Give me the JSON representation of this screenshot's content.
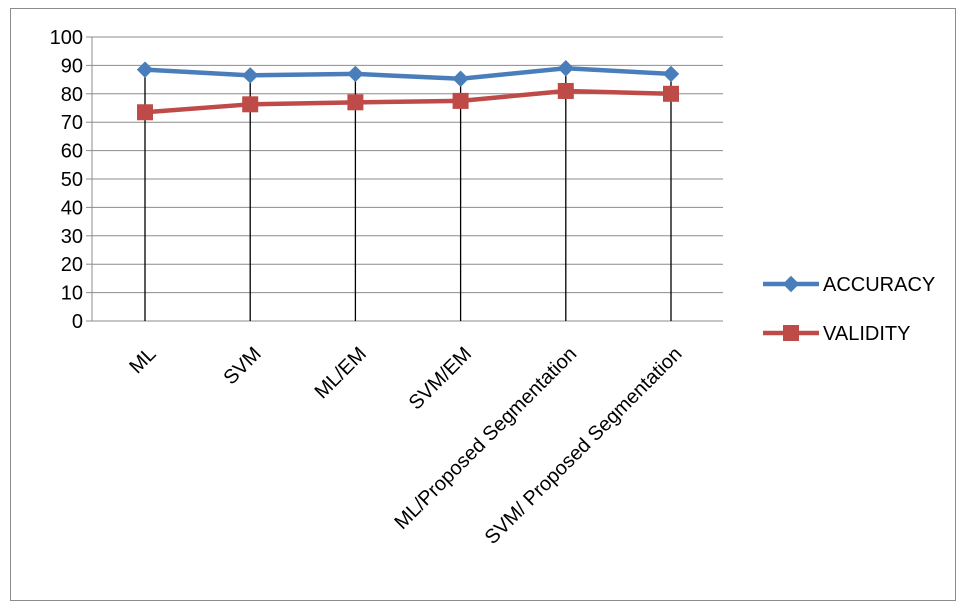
{
  "chart_data": {
    "type": "line",
    "title": "",
    "xlabel": "",
    "ylabel": "",
    "categories": [
      "ML",
      "SVM",
      "ML/EM",
      "SVM/EM",
      "ML/Proposed Segmentation",
      "SVM/ Proposed Segmentation"
    ],
    "ylim": [
      0,
      100
    ],
    "yticks": [
      "0",
      "10",
      "20",
      "30",
      "40",
      "50",
      "60",
      "70",
      "80",
      "90",
      "100"
    ],
    "grid": "horizontal",
    "drop_lines": true,
    "legend_position": "right",
    "series": [
      {
        "name": "ACCURACY",
        "color": "#4a7ebb",
        "marker": "diamond",
        "values": [
          88.5,
          86.5,
          87.0,
          85.3,
          89.0,
          87.0
        ]
      },
      {
        "name": "VALIDITY",
        "color": "#be4b48",
        "marker": "square",
        "values": [
          73.5,
          76.3,
          77.0,
          77.5,
          81.0,
          80.0
        ]
      }
    ]
  }
}
